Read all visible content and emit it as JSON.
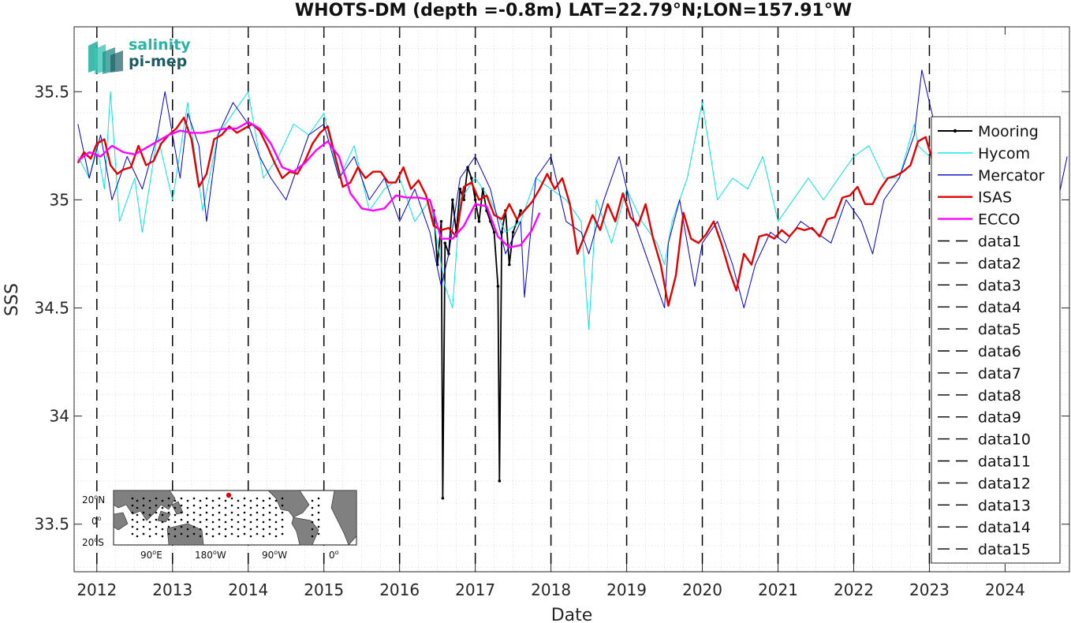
{
  "chart_data": {
    "type": "line",
    "title": "WHOTS-DM (depth =-0.8m) LAT=22.79°N;LON=157.91°W",
    "xlabel": "Date",
    "ylabel": "SSS",
    "xlim": [
      2011.7,
      2024.85
    ],
    "ylim": [
      33.28,
      35.8
    ],
    "x_ticks": [
      2012,
      2013,
      2014,
      2015,
      2016,
      2017,
      2018,
      2019,
      2020,
      2021,
      2022,
      2023,
      2024
    ],
    "x_tick_labels": [
      "2012",
      "2013",
      "2014",
      "2015",
      "2016",
      "2017",
      "2018",
      "2019",
      "2020",
      "2021",
      "2022",
      "2023",
      "2024"
    ],
    "y_ticks": [
      33.5,
      34,
      34.5,
      35,
      35.5
    ],
    "y_tick_labels": [
      "33.5",
      "34",
      "34.5",
      "35",
      "35.5"
    ],
    "grid": true,
    "legend_position": "right",
    "vlines": [
      2012.0,
      2013.0,
      2014.0,
      2015.0,
      2016.0,
      2017.0,
      2018.0,
      2019.0,
      2020.0,
      2021.0,
      2022.0,
      2023.0
    ],
    "series": [
      {
        "name": "Mooring",
        "color": "#000000",
        "style": "solid-marker",
        "x": [
          2016.45,
          2016.5,
          2016.55,
          2016.57,
          2016.6,
          2016.65,
          2016.7,
          2016.75,
          2016.8,
          2016.85,
          2016.9,
          2016.95,
          2017.0,
          2017.05,
          2017.1,
          2017.15,
          2017.2,
          2017.25,
          2017.3,
          2017.32,
          2017.35,
          2017.4,
          2017.45,
          2017.5,
          2017.55,
          2017.6
        ],
        "y": [
          34.95,
          34.7,
          34.9,
          33.62,
          34.8,
          34.75,
          35.0,
          34.85,
          35.05,
          35.0,
          35.15,
          35.1,
          35.0,
          34.9,
          35.05,
          34.95,
          34.9,
          34.85,
          34.6,
          33.7,
          34.85,
          34.95,
          34.7,
          34.85,
          34.9,
          34.95
        ]
      },
      {
        "name": "Hycom",
        "color": "#00e5e5",
        "style": "solid",
        "x": [
          2011.75,
          2011.9,
          2012.0,
          2012.1,
          2012.18,
          2012.3,
          2012.5,
          2012.6,
          2012.8,
          2013.0,
          2013.2,
          2013.4,
          2013.6,
          2013.8,
          2014.0,
          2014.2,
          2014.4,
          2014.6,
          2014.8,
          2015.0,
          2015.2,
          2015.4,
          2015.6,
          2015.8,
          2016.0,
          2016.2,
          2016.4,
          2016.6,
          2016.7,
          2016.8,
          2017.0,
          2017.2,
          2017.4,
          2017.6,
          2017.8,
          2018.0,
          2018.2,
          2018.4,
          2018.5,
          2018.6,
          2018.8,
          2019.0,
          2019.2,
          2019.4,
          2019.5,
          2019.6,
          2019.8,
          2020.0,
          2020.2,
          2020.4,
          2020.6,
          2020.8,
          2021.0,
          2021.2,
          2021.4,
          2021.6,
          2021.8,
          2022.0,
          2022.2,
          2022.4,
          2022.6,
          2022.8,
          2022.85,
          2023.0
        ],
        "y": [
          35.2,
          35.1,
          35.25,
          35.05,
          35.5,
          34.9,
          35.1,
          34.85,
          35.3,
          35.0,
          35.45,
          34.95,
          35.3,
          35.4,
          35.5,
          35.1,
          35.2,
          35.35,
          35.3,
          35.4,
          35.1,
          35.25,
          34.95,
          35.05,
          35.1,
          34.9,
          35.0,
          34.6,
          34.5,
          35.0,
          35.1,
          35.0,
          34.85,
          34.9,
          35.1,
          35.05,
          35.0,
          34.9,
          34.4,
          35.0,
          34.8,
          35.05,
          34.9,
          34.8,
          34.7,
          34.9,
          35.1,
          35.45,
          35.0,
          35.1,
          35.05,
          35.2,
          34.9,
          35.0,
          35.1,
          35.0,
          35.1,
          35.2,
          35.25,
          35.1,
          35.1,
          35.35,
          35.25,
          35.2
        ]
      },
      {
        "name": "Mercator",
        "color": "#0000c8",
        "style": "solid",
        "x": [
          2011.75,
          2011.9,
          2012.05,
          2012.2,
          2012.4,
          2012.6,
          2012.8,
          2012.9,
          2013.0,
          2013.1,
          2013.2,
          2013.35,
          2013.45,
          2013.6,
          2013.8,
          2014.0,
          2014.15,
          2014.3,
          2014.5,
          2014.6,
          2014.8,
          2015.0,
          2015.2,
          2015.4,
          2015.6,
          2015.8,
          2016.0,
          2016.2,
          2016.4,
          2016.55,
          2016.65,
          2016.8,
          2017.0,
          2017.2,
          2017.4,
          2017.6,
          2017.65,
          2017.8,
          2018.0,
          2018.2,
          2018.4,
          2018.5,
          2018.7,
          2018.9,
          2019.1,
          2019.3,
          2019.5,
          2019.55,
          2019.7,
          2019.9,
          2020.0,
          2020.2,
          2020.4,
          2020.55,
          2020.7,
          2020.9,
          2021.1,
          2021.3,
          2021.5,
          2021.7,
          2021.9,
          2022.1,
          2022.25,
          2022.4,
          2022.6,
          2022.8,
          2022.9,
          2023.1,
          2023.3,
          2023.5,
          2023.7,
          2023.9,
          2024.1,
          2024.3,
          2024.5,
          2024.7,
          2024.82
        ],
        "y": [
          35.35,
          35.1,
          35.3,
          35.0,
          35.2,
          35.05,
          35.3,
          35.5,
          35.3,
          35.1,
          35.4,
          35.25,
          34.9,
          35.3,
          35.45,
          35.35,
          35.2,
          35.1,
          35.0,
          35.1,
          35.3,
          35.35,
          35.1,
          35.2,
          35.0,
          35.1,
          34.9,
          35.05,
          34.85,
          34.6,
          34.75,
          35.1,
          35.2,
          35.05,
          34.75,
          34.9,
          34.55,
          35.1,
          35.2,
          34.9,
          34.85,
          34.75,
          35.0,
          35.2,
          34.9,
          34.7,
          34.5,
          34.8,
          35.0,
          34.6,
          34.8,
          34.9,
          34.7,
          34.5,
          34.7,
          34.85,
          34.8,
          34.9,
          34.85,
          34.8,
          35.0,
          34.9,
          34.75,
          35.0,
          35.1,
          35.3,
          35.6,
          35.3,
          35.2,
          35.25,
          35.1,
          35.15,
          35.2,
          35.05,
          35.15,
          35.0,
          35.2
        ]
      },
      {
        "name": "ISAS",
        "color": "#e00000",
        "style": "thick",
        "x": [
          2011.75,
          2011.83,
          2011.92,
          2012.0,
          2012.1,
          2012.18,
          2012.27,
          2012.35,
          2012.45,
          2012.55,
          2012.65,
          2012.75,
          2012.85,
          2012.95,
          2013.05,
          2013.15,
          2013.25,
          2013.35,
          2013.45,
          2013.55,
          2013.65,
          2013.75,
          2013.85,
          2013.95,
          2014.05,
          2014.15,
          2014.25,
          2014.35,
          2014.45,
          2014.55,
          2014.65,
          2014.75,
          2014.85,
          2014.95,
          2015.05,
          2015.15,
          2015.25,
          2015.35,
          2015.45,
          2015.55,
          2015.65,
          2015.75,
          2015.85,
          2015.95,
          2016.05,
          2016.15,
          2016.25,
          2016.35,
          2016.45,
          2016.55,
          2016.65,
          2016.75,
          2016.85,
          2016.95,
          2017.05,
          2017.15,
          2017.25,
          2017.35,
          2017.45,
          2017.55,
          2017.65,
          2017.75,
          2017.85,
          2017.95,
          2018.05,
          2018.15,
          2018.25,
          2018.35,
          2018.45,
          2018.55,
          2018.65,
          2018.75,
          2018.85,
          2018.95,
          2019.05,
          2019.15,
          2019.25,
          2019.35,
          2019.45,
          2019.55,
          2019.65,
          2019.75,
          2019.85,
          2019.95,
          2020.05,
          2020.15,
          2020.25,
          2020.35,
          2020.45,
          2020.55,
          2020.65,
          2020.75,
          2020.85,
          2020.95,
          2021.05,
          2021.15,
          2021.25,
          2021.35,
          2021.45,
          2021.55,
          2021.65,
          2021.75,
          2021.85,
          2021.95,
          2022.05,
          2022.15,
          2022.25,
          2022.35,
          2022.45,
          2022.55,
          2022.65,
          2022.75,
          2022.85,
          2022.95,
          2023.05
        ],
        "y": [
          35.17,
          35.22,
          35.19,
          35.26,
          35.28,
          35.16,
          35.12,
          35.14,
          35.15,
          35.25,
          35.16,
          35.18,
          35.26,
          35.3,
          35.33,
          35.38,
          35.28,
          35.06,
          35.12,
          35.28,
          35.3,
          35.34,
          35.31,
          35.33,
          35.35,
          35.32,
          35.25,
          35.17,
          35.1,
          35.13,
          35.12,
          35.18,
          35.26,
          35.31,
          35.34,
          35.2,
          35.06,
          35.08,
          35.15,
          35.1,
          35.13,
          35.13,
          35.08,
          35.08,
          35.15,
          35.05,
          35.09,
          35.02,
          34.88,
          34.86,
          34.87,
          34.83,
          35.06,
          35.08,
          35.0,
          35.02,
          34.93,
          34.91,
          34.98,
          34.91,
          34.95,
          34.99,
          35.05,
          35.12,
          35.05,
          35.1,
          34.98,
          34.75,
          34.84,
          34.93,
          34.86,
          34.98,
          34.9,
          35.03,
          34.92,
          34.88,
          34.98,
          34.82,
          34.7,
          34.51,
          34.65,
          34.94,
          34.82,
          34.8,
          34.84,
          34.9,
          34.8,
          34.68,
          34.58,
          34.75,
          34.7,
          34.83,
          34.84,
          34.82,
          34.86,
          34.83,
          34.87,
          34.86,
          34.87,
          34.83,
          34.91,
          34.92,
          35.01,
          35.02,
          35.06,
          34.98,
          34.98,
          35.05,
          35.1,
          35.11,
          35.13,
          35.16,
          35.27,
          35.29,
          35.17
        ]
      },
      {
        "name": "ECCO",
        "color": "#ff00ff",
        "style": "thick",
        "x": [
          2011.75,
          2011.9,
          2012.05,
          2012.2,
          2012.35,
          2012.5,
          2012.65,
          2012.8,
          2012.95,
          2013.1,
          2013.25,
          2013.4,
          2013.55,
          2013.7,
          2013.85,
          2014.0,
          2014.15,
          2014.3,
          2014.45,
          2014.6,
          2014.75,
          2014.9,
          2015.05,
          2015.2,
          2015.35,
          2015.5,
          2015.65,
          2015.8,
          2015.95,
          2016.1,
          2016.25,
          2016.4,
          2016.55,
          2016.7,
          2016.85,
          2017.0,
          2017.15,
          2017.3,
          2017.45,
          2017.6,
          2017.75,
          2017.85
        ],
        "y": [
          35.18,
          35.22,
          35.2,
          35.25,
          35.22,
          35.21,
          35.24,
          35.27,
          35.3,
          35.32,
          35.31,
          35.31,
          35.32,
          35.33,
          35.33,
          35.36,
          35.33,
          35.26,
          35.15,
          35.13,
          35.17,
          35.23,
          35.27,
          35.2,
          35.03,
          34.96,
          34.95,
          34.96,
          35.02,
          35.01,
          35.01,
          35.0,
          34.82,
          34.82,
          34.88,
          34.98,
          34.97,
          34.83,
          34.78,
          34.79,
          34.86,
          34.94
        ]
      }
    ],
    "legend_dashed_entries": [
      "data1",
      "data2",
      "data3",
      "data4",
      "data5",
      "data6",
      "data7",
      "data8",
      "data9",
      "data10",
      "data11",
      "data12",
      "data13",
      "data14",
      "data15"
    ]
  },
  "logo": {
    "line1": "salinity",
    "line2": "pi-mep"
  },
  "inset_map": {
    "y_labels": [
      "20",
      "N",
      "0",
      "20",
      "S"
    ],
    "x_labels": [
      "90",
      "E",
      "180",
      "W",
      "90",
      "W",
      "0"
    ],
    "degree": "o"
  }
}
